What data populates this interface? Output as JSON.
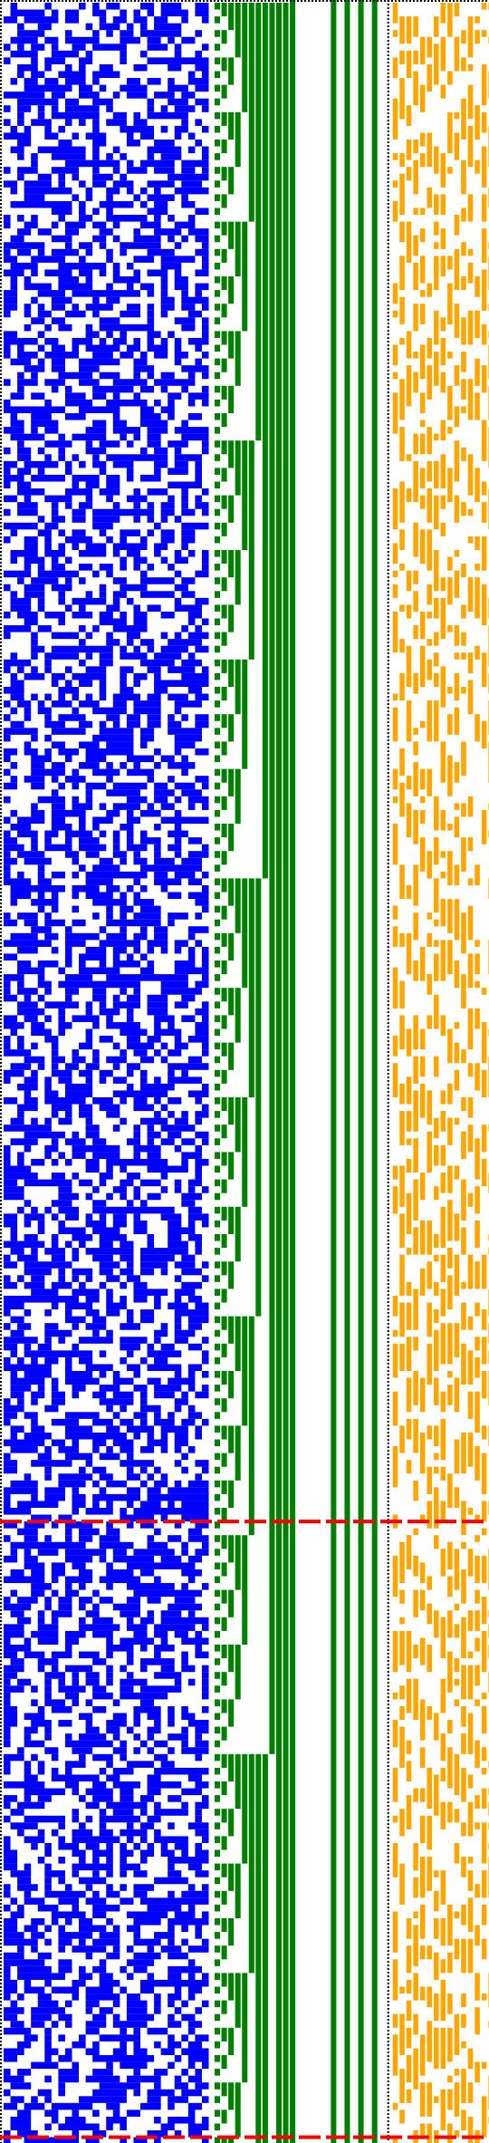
{
  "title": "",
  "colors": {
    "background": "#ffffff",
    "random_cells": "#0000ff",
    "counter_cells": "#008000",
    "output_cells": "#ffa500",
    "separator_line": "#ff0000",
    "border_dots": "#000000"
  },
  "regions": {
    "random_block": {
      "columns": 30,
      "pattern": "random",
      "density": 0.55
    },
    "counter_block": {
      "columns": 24,
      "pattern": "binary-counter",
      "solid_columns": [
        11,
        17,
        19,
        21,
        23
      ]
    },
    "output_block": {
      "columns": 17,
      "pattern": "sparse-random",
      "density": 0.6
    }
  },
  "rows": 313,
  "separators_at_rows": [
    222,
    312
  ]
}
